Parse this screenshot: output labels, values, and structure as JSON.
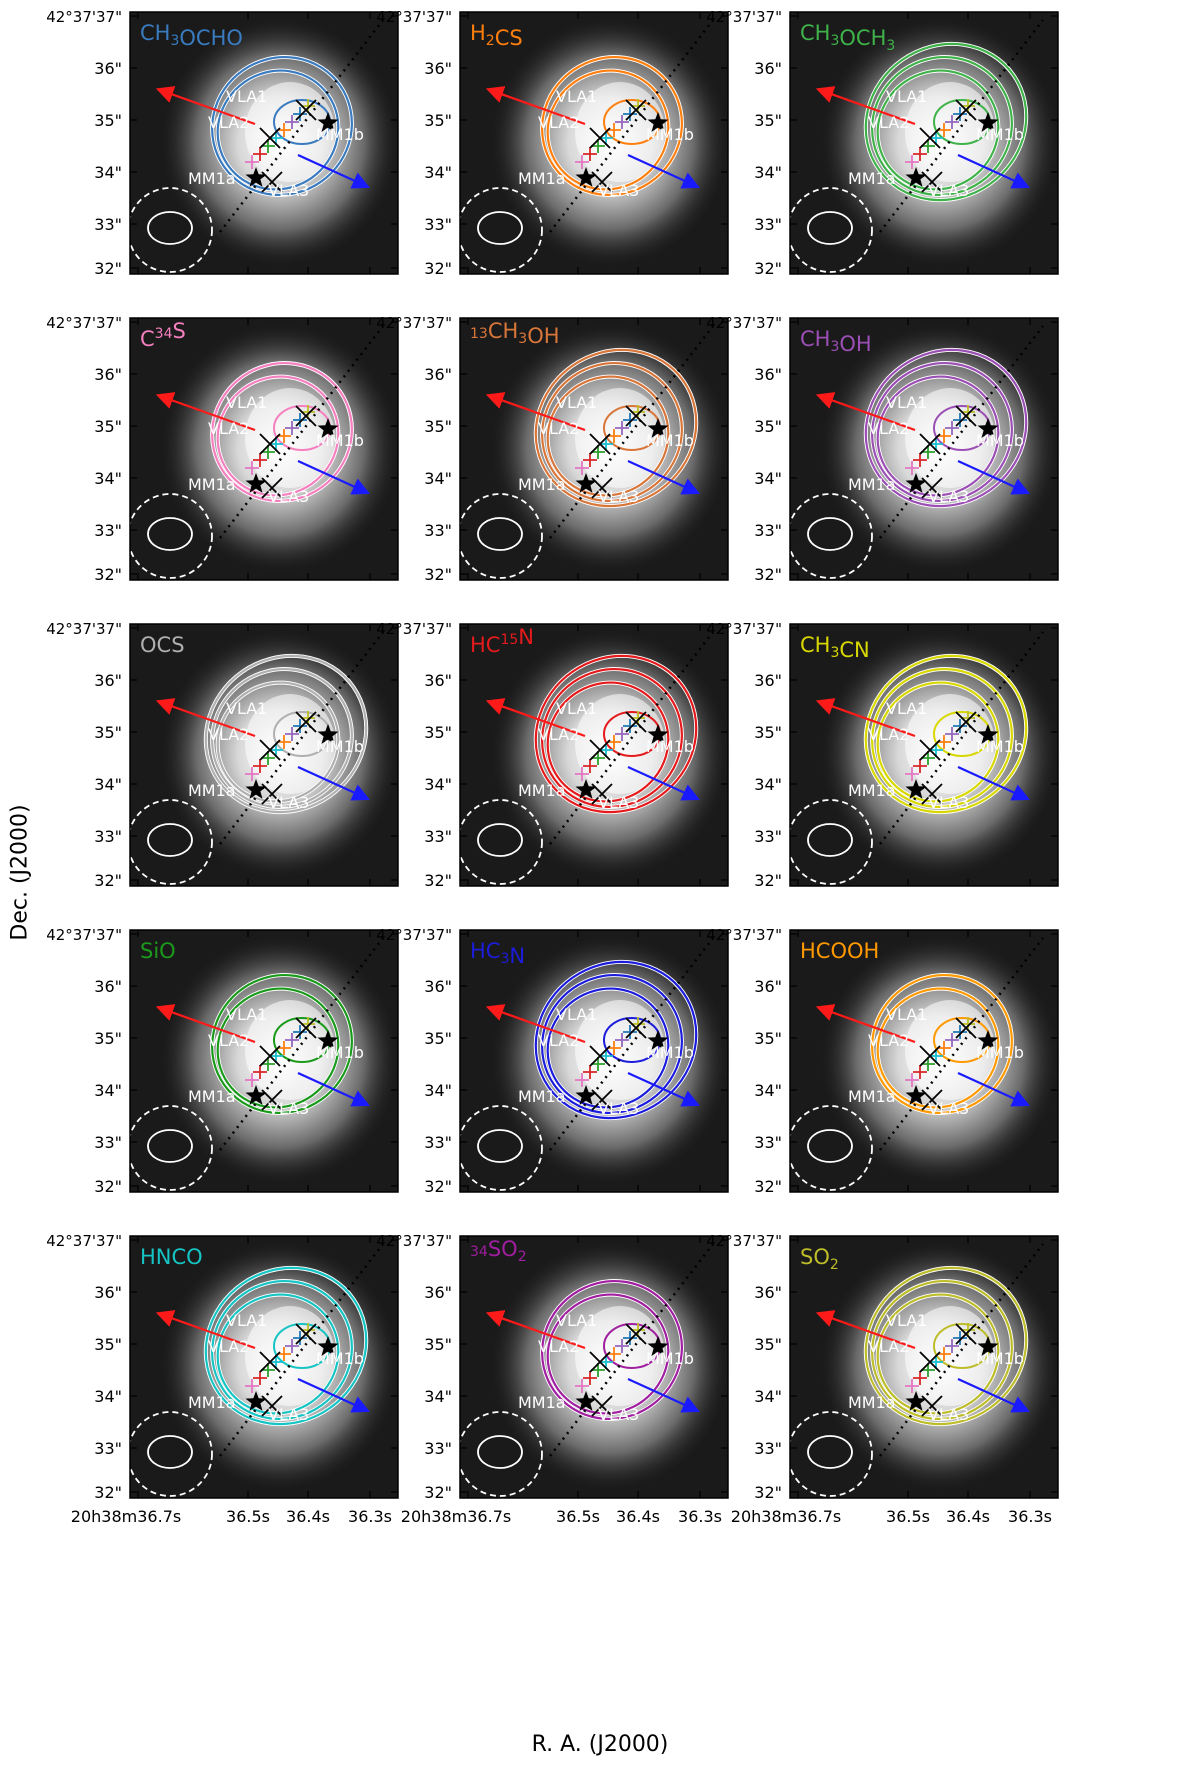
{
  "figure": {
    "xlabel": "R. A. (J2000)",
    "ylabel": "Dec. (J2000)",
    "dec_ticks": [
      "42°37'37\"",
      "36\"",
      "35\"",
      "34\"",
      "33\"",
      "32\""
    ],
    "ra_ticks": [
      "20h38m36.7s",
      "36.5s",
      "36.4s",
      "36.3s"
    ],
    "source_labels": [
      "VLA1",
      "VLA2",
      "MM1b",
      "MM1a",
      "VLA3"
    ]
  },
  "panels": [
    {
      "title": "CH3OCHO",
      "color": "#3a7bbf",
      "levels": 2
    },
    {
      "title": "H2CS",
      "color": "#ff7f0e",
      "levels": 2
    },
    {
      "title": "CH3OCH3",
      "color": "#3fb24a",
      "levels": 3
    },
    {
      "title": "C34S",
      "color": "#f57fbf",
      "levels": 2
    },
    {
      "title": "13CH3OH",
      "color": "#d8763a",
      "levels": 3
    },
    {
      "title": "CH3OH",
      "color": "#9b4fb5",
      "levels": 3
    },
    {
      "title": "OCS",
      "color": "#b0b0b0",
      "levels": 3
    },
    {
      "title": "HC15N",
      "color": "#e41a1c",
      "levels": 3
    },
    {
      "title": "CH3CN",
      "color": "#d8d800",
      "levels": 3
    },
    {
      "title": "SiO",
      "color": "#1a9a1a",
      "levels": 2
    },
    {
      "title": "HC3N",
      "color": "#1c1cdc",
      "levels": 3
    },
    {
      "title": "HCOOH",
      "color": "#ff9900",
      "levels": 2
    },
    {
      "title": "HNCO",
      "color": "#16c4c4",
      "levels": 3
    },
    {
      "title": "34SO2",
      "color": "#a01ea0",
      "levels": 2
    },
    {
      "title": "SO2",
      "color": "#bdbd2a",
      "levels": 3
    }
  ]
}
